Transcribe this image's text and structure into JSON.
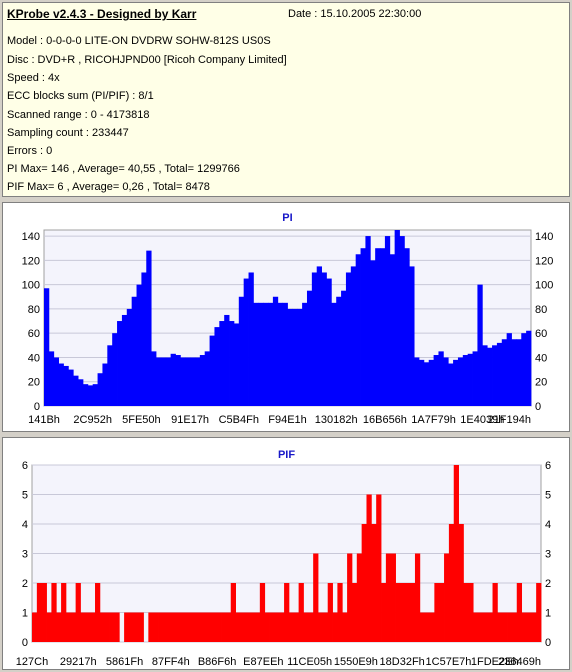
{
  "info": {
    "title": "KProbe v2.4.3 - Designed by Karr",
    "date": "Date : 15.10.2005 22:30:00",
    "lines": [
      "Model : 0-0-0-0 LITE-ON DVDRW SOHW-812S  US0S",
      "Disc : DVD+R , RICOHJPND00 [Ricoh Company Limited]",
      "Speed : 4x",
      "ECC blocks sum (PI/PIF) : 8/1",
      "Scanned range : 0 - 4173818",
      "Sampling count : 233447",
      "Errors : 0",
      "PI Max= 146 , Average= 40,55 , Total= 1299766",
      "PIF Max= 6 , Average= 0,26 , Total= 8478"
    ]
  },
  "chart_data": [
    {
      "type": "area",
      "title": "PI",
      "color": "#0000ff",
      "ylim": [
        0,
        145
      ],
      "yticks": [
        0,
        20,
        40,
        60,
        80,
        100,
        120,
        140
      ],
      "xticks": [
        "141Bh",
        "2C952h",
        "5FE50h",
        "91E17h",
        "C5B4Fh",
        "F94E1h",
        "130182h",
        "16B656h",
        "1A7F79h",
        "1E4039h",
        "21F194h"
      ],
      "y": [
        97,
        45,
        40,
        35,
        33,
        30,
        25,
        22,
        18,
        17,
        18,
        27,
        35,
        50,
        60,
        70,
        75,
        80,
        90,
        100,
        110,
        128,
        45,
        40,
        40,
        40,
        43,
        42,
        40,
        40,
        40,
        40,
        42,
        45,
        58,
        65,
        70,
        75,
        70,
        68,
        90,
        105,
        110,
        85,
        85,
        85,
        85,
        90,
        85,
        85,
        80,
        80,
        80,
        85,
        95,
        110,
        115,
        110,
        105,
        85,
        90,
        95,
        110,
        115,
        125,
        130,
        140,
        120,
        130,
        130,
        140,
        125,
        145,
        140,
        130,
        115,
        40,
        38,
        36,
        38,
        42,
        45,
        40,
        35,
        38,
        40,
        42,
        43,
        45,
        100,
        50,
        48,
        50,
        52,
        55,
        60,
        55,
        55,
        60,
        62
      ]
    },
    {
      "type": "bar",
      "title": "PIF",
      "color": "#ff0000",
      "ylim": [
        0,
        6
      ],
      "yticks": [
        0,
        1,
        2,
        3,
        4,
        5,
        6
      ],
      "xticks": [
        "127Ch",
        "29217h",
        "5861Fh",
        "87FF4h",
        "B86F6h",
        "E87EEh",
        "11CE05h",
        "1550E9h",
        "18D32Fh",
        "1C57E7h",
        "1FDE2Eh",
        "236469h"
      ],
      "y": [
        1,
        2,
        2,
        1,
        2,
        1,
        2,
        1,
        1,
        2,
        1,
        1,
        1,
        2,
        1,
        1,
        1,
        1,
        0,
        1,
        1,
        1,
        1,
        0,
        1,
        1,
        1,
        1,
        1,
        1,
        1,
        1,
        1,
        1,
        1,
        1,
        1,
        1,
        1,
        1,
        1,
        2,
        1,
        1,
        1,
        1,
        1,
        2,
        1,
        1,
        1,
        1,
        2,
        1,
        1,
        2,
        1,
        1,
        3,
        1,
        1,
        2,
        1,
        2,
        1,
        3,
        2,
        3,
        4,
        5,
        4,
        5,
        2,
        3,
        3,
        2,
        2,
        2,
        2,
        3,
        1,
        1,
        1,
        2,
        2,
        3,
        4,
        6,
        4,
        2,
        2,
        1,
        1,
        1,
        1,
        2,
        1,
        1,
        1,
        1,
        2,
        1,
        1,
        1,
        2
      ]
    }
  ]
}
